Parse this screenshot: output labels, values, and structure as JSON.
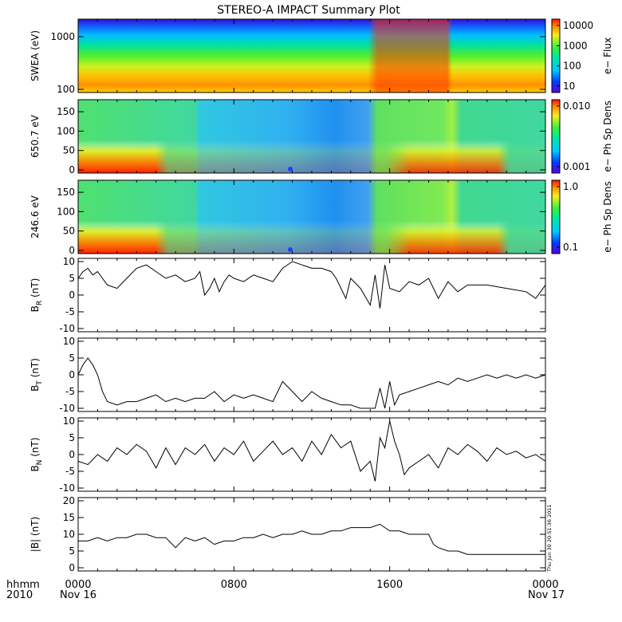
{
  "title": "STEREO-A IMPACT Summary Plot",
  "footer": {
    "row_label": "hhmm",
    "year": "2010",
    "start_date": "Nov 16",
    "end_date": "Nov 17",
    "x_ticks": [
      "0000",
      "0800",
      "1600",
      "0000"
    ],
    "timestamp": "Thu Jun 30 20:51:36 2011"
  },
  "chart_data": [
    {
      "type": "heatmap",
      "id": "swea",
      "ylabel": "SWEA (eV)",
      "y_scale": "log",
      "y_ticks": [
        "1000",
        "100"
      ],
      "colorbar_label": "e− Flux",
      "colorbar_ticks": [
        "10000",
        "1000",
        "100",
        "10"
      ],
      "colorbar_scale": "log"
    },
    {
      "type": "heatmap",
      "id": "pad650",
      "ylabel": "650.7 eV",
      "y_ticks": [
        "0",
        "50",
        "100",
        "150"
      ],
      "colorbar_label": "e− Ph Sp Dens",
      "colorbar_ticks": [
        "0.010",
        "0.001"
      ],
      "colorbar_scale": "log"
    },
    {
      "type": "heatmap",
      "id": "pad246",
      "ylabel": "246.6 eV",
      "y_ticks": [
        "0",
        "50",
        "100",
        "150"
      ],
      "colorbar_label": "e− Ph Sp Dens",
      "colorbar_ticks": [
        "1.0",
        "0.1"
      ],
      "colorbar_scale": "log"
    },
    {
      "type": "line",
      "id": "br",
      "ylabel_main": "B",
      "ylabel_sub": "R",
      "ylabel_unit": " (nT)",
      "ylim": [
        -10,
        10
      ],
      "y_ticks": [
        "10",
        "5",
        "0",
        "-5",
        "-10"
      ],
      "x_hours": [
        0,
        0.25,
        0.5,
        0.75,
        1,
        1.5,
        2,
        2.5,
        3,
        3.5,
        4,
        4.5,
        5,
        5.5,
        6,
        6.25,
        6.5,
        6.75,
        7,
        7.25,
        7.5,
        7.75,
        8,
        8.5,
        9,
        9.5,
        10,
        10.5,
        11,
        11.5,
        12,
        12.5,
        13,
        13.25,
        13.5,
        13.75,
        14,
        14.5,
        15,
        15.25,
        15.5,
        15.75,
        16,
        16.5,
        17,
        17.5,
        18,
        18.5,
        19,
        19.5,
        20,
        21,
        22,
        23,
        23.5,
        24
      ],
      "y_values": [
        5,
        7,
        8,
        6,
        7,
        3,
        2,
        5,
        8,
        9,
        7,
        5,
        6,
        4,
        5,
        7,
        0,
        2,
        5,
        1,
        4,
        6,
        5,
        4,
        6,
        5,
        4,
        8,
        10,
        9,
        8,
        8,
        7,
        5,
        2,
        -1,
        5,
        2,
        -3,
        6,
        -4,
        9,
        2,
        1,
        4,
        3,
        5,
        -1,
        4,
        1,
        3,
        3,
        2,
        1,
        -1,
        3
      ]
    },
    {
      "type": "line",
      "id": "bt",
      "ylabel_main": "B",
      "ylabel_sub": "T",
      "ylabel_unit": " (nT)",
      "ylim": [
        -10,
        10
      ],
      "y_ticks": [
        "10",
        "5",
        "0",
        "-5",
        "-10"
      ],
      "x_hours": [
        0,
        0.25,
        0.5,
        0.75,
        1,
        1.25,
        1.5,
        2,
        2.5,
        3,
        3.5,
        4,
        4.5,
        5,
        5.5,
        6,
        6.5,
        7,
        7.5,
        8,
        8.5,
        9,
        9.5,
        10,
        10.5,
        11,
        11.5,
        12,
        12.5,
        13,
        13.5,
        14,
        14.5,
        15.25,
        15.5,
        15.75,
        16,
        16.25,
        16.5,
        17,
        17.5,
        18,
        18.5,
        19,
        19.5,
        20,
        20.5,
        21,
        21.5,
        22,
        22.5,
        23,
        23.5,
        24
      ],
      "y_values": [
        0,
        3,
        5,
        3,
        0,
        -5,
        -8,
        -9,
        -8,
        -8,
        -7,
        -6,
        -8,
        -7,
        -8,
        -7,
        -7,
        -5,
        -8,
        -6,
        -7,
        -6,
        -7,
        -8,
        -2,
        -5,
        -8,
        -5,
        -7,
        -8,
        -9,
        -9,
        -10,
        -10,
        -4,
        -10,
        -2,
        -9,
        -6,
        -5,
        -4,
        -3,
        -2,
        -3,
        -1,
        -2,
        -1,
        0,
        -1,
        0,
        -1,
        0,
        -1,
        0
      ]
    },
    {
      "type": "line",
      "id": "bn",
      "ylabel_main": "B",
      "ylabel_sub": "N",
      "ylabel_unit": " (nT)",
      "ylim": [
        -10,
        10
      ],
      "y_ticks": [
        "10",
        "5",
        "0",
        "-5",
        "-10"
      ],
      "x_hours": [
        0,
        0.5,
        1,
        1.5,
        2,
        2.5,
        3,
        3.5,
        4,
        4.5,
        5,
        5.5,
        6,
        6.5,
        7,
        7.5,
        8,
        8.5,
        9,
        9.5,
        10,
        10.5,
        11,
        11.5,
        12,
        12.5,
        13,
        13.5,
        14,
        14.5,
        15,
        15.25,
        15.5,
        15.75,
        16,
        16.25,
        16.5,
        16.75,
        17,
        17.5,
        18,
        18.5,
        19,
        19.5,
        20,
        20.5,
        21,
        21.5,
        22,
        22.5,
        23,
        23.5,
        24
      ],
      "y_values": [
        -2,
        -3,
        0,
        -2,
        2,
        0,
        3,
        1,
        -4,
        2,
        -3,
        2,
        0,
        3,
        -2,
        2,
        0,
        4,
        -2,
        1,
        4,
        0,
        2,
        -2,
        4,
        0,
        6,
        2,
        4,
        -5,
        -2,
        -8,
        5,
        2,
        10,
        4,
        0,
        -6,
        -4,
        -2,
        0,
        -4,
        2,
        0,
        3,
        1,
        -2,
        2,
        0,
        1,
        -1,
        0,
        -2
      ]
    },
    {
      "type": "line",
      "id": "bmag",
      "ylabel": "|B| (nT)",
      "ylim": [
        0,
        20
      ],
      "y_ticks": [
        "20",
        "15",
        "10",
        "5",
        "0"
      ],
      "x_hours": [
        0,
        0.5,
        1,
        1.5,
        2,
        2.5,
        3,
        3.5,
        4,
        4.5,
        5,
        5.5,
        6,
        6.5,
        7,
        7.5,
        8,
        8.5,
        9,
        9.5,
        10,
        10.5,
        11,
        11.5,
        12,
        12.5,
        13,
        13.5,
        14,
        14.5,
        15,
        15.5,
        16,
        16.5,
        17,
        17.5,
        18,
        18.25,
        18.5,
        19,
        19.5,
        20,
        20.5,
        21,
        21.5,
        22,
        22.5,
        23,
        23.5,
        24
      ],
      "y_values": [
        8,
        8,
        9,
        8,
        9,
        9,
        10,
        10,
        9,
        9,
        6,
        9,
        8,
        9,
        7,
        8,
        8,
        9,
        9,
        10,
        9,
        10,
        10,
        11,
        10,
        10,
        11,
        11,
        12,
        12,
        12,
        13,
        11,
        11,
        10,
        10,
        10,
        7,
        6,
        5,
        5,
        4,
        4,
        4,
        4,
        4,
        4,
        4,
        4,
        4
      ]
    }
  ]
}
